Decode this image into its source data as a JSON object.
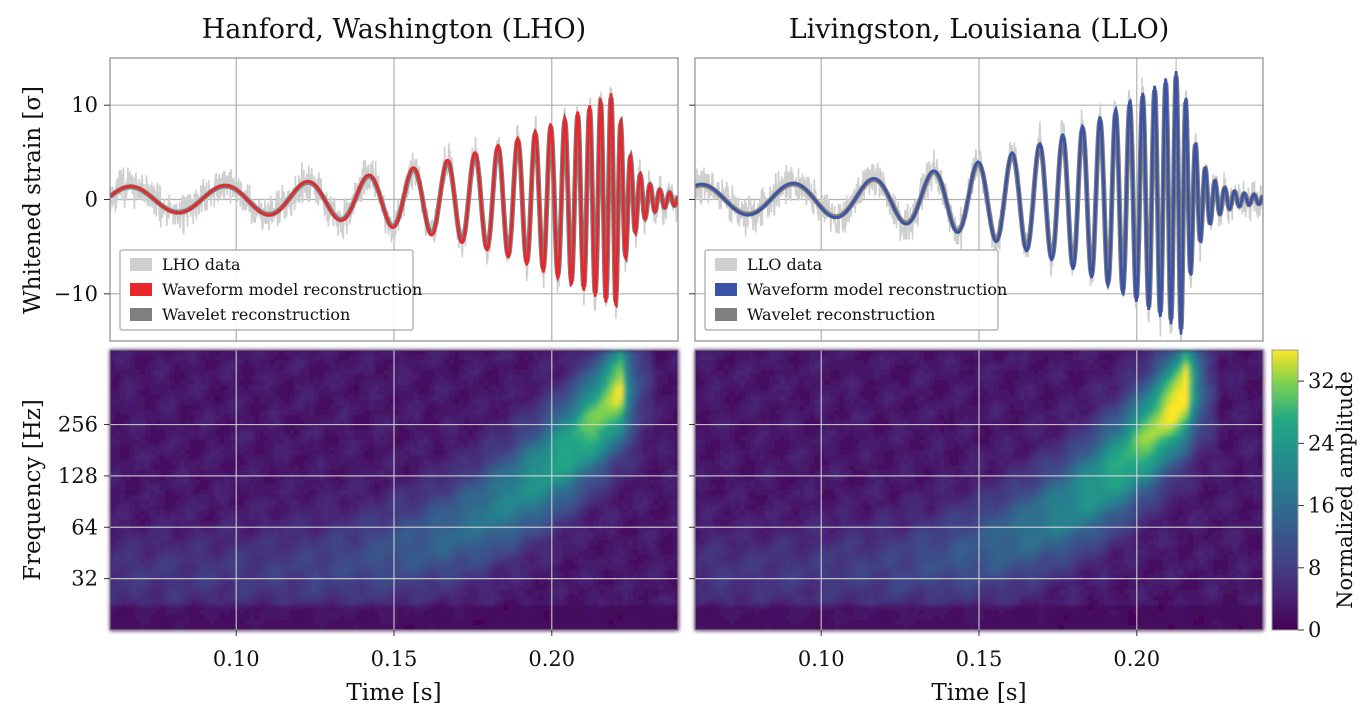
{
  "chart_data": [
    {
      "type": "line",
      "panel": "lho-strain",
      "title": "Hanford, Washington (LHO)",
      "ylabel": "Whitened strain [σ]",
      "xlim": [
        0.06,
        0.24
      ],
      "ylim": [
        -15,
        15
      ],
      "yticks": [
        -10,
        0,
        10
      ],
      "ytick_labels": [
        "−10",
        "0",
        "10"
      ],
      "grid": true,
      "legend_position": "lower-left",
      "legend": [
        {
          "label": "LHO data",
          "color": "#cfcfcf"
        },
        {
          "label": "Waveform model reconstruction",
          "color": "#e8262b"
        },
        {
          "label": "Wavelet reconstruction",
          "color": "#7f7f7f"
        }
      ],
      "series": [
        {
          "name": "LHO data",
          "color": "#cfcfcf"
        },
        {
          "name": "Waveform model reconstruction",
          "color": "#e8262b"
        },
        {
          "name": "Wavelet reconstruction",
          "color": "#7f7f7f"
        }
      ],
      "model": {
        "t_peak": 0.22,
        "a_env": 1.4,
        "env_k": 2.4,
        "amp_max": 11.5,
        "freq_base": 33,
        "freq_rise": 290,
        "freq_k": 2.4,
        "phase": 0.2,
        "ringdown_decay": 0.005
      }
    },
    {
      "type": "line",
      "panel": "llo-strain",
      "title": "Livingston, Louisiana (LLO)",
      "xlim": [
        0.06,
        0.24
      ],
      "ylim": [
        -15,
        15
      ],
      "yticks": [
        -10,
        0,
        10
      ],
      "grid": true,
      "legend_position": "lower-left",
      "legend": [
        {
          "label": "LLO data",
          "color": "#cfcfcf"
        },
        {
          "label": "Waveform model reconstruction",
          "color": "#3a53a4"
        },
        {
          "label": "Wavelet reconstruction",
          "color": "#7f7f7f"
        }
      ],
      "series": [
        {
          "name": "LLO data",
          "color": "#cfcfcf"
        },
        {
          "name": "Waveform model reconstruction",
          "color": "#3a53a4"
        },
        {
          "name": "Wavelet reconstruction",
          "color": "#7f7f7f"
        }
      ],
      "model": {
        "t_peak": 0.214,
        "a_env": 1.6,
        "env_k": 2.3,
        "amp_max": 14.0,
        "freq_base": 34,
        "freq_rise": 290,
        "freq_k": 2.4,
        "phase": 1.1,
        "ringdown_decay": 0.005
      }
    },
    {
      "type": "heatmap",
      "panel": "lho-spectrogram",
      "xlabel": "Time [s]",
      "ylabel": "Frequency [Hz]",
      "xlim": [
        0.06,
        0.24
      ],
      "xticks": [
        0.1,
        0.15,
        0.2
      ],
      "xtick_labels": [
        "0.10",
        "0.15",
        "0.20"
      ],
      "y_scale": "log2",
      "ylim": [
        16,
        700
      ],
      "yticks": [
        32,
        64,
        128,
        256
      ],
      "ytick_labels": [
        "32",
        "64",
        "128",
        "256"
      ],
      "grid": true,
      "track": {
        "t_start": 0.06,
        "t_peak": 0.222,
        "f_low": 34,
        "f_high": 420,
        "k": 2.4,
        "peak_amplitude": 32
      }
    },
    {
      "type": "heatmap",
      "panel": "llo-spectrogram",
      "xlabel": "Time [s]",
      "xlim": [
        0.06,
        0.24
      ],
      "xticks": [
        0.1,
        0.15,
        0.2
      ],
      "xtick_labels": [
        "0.10",
        "0.15",
        "0.20"
      ],
      "y_scale": "log2",
      "ylim": [
        16,
        700
      ],
      "yticks": [
        32,
        64,
        128,
        256
      ],
      "grid": true,
      "track": {
        "t_start": 0.06,
        "t_peak": 0.216,
        "f_low": 34,
        "f_high": 420,
        "k": 2.4,
        "peak_amplitude": 36
      }
    }
  ],
  "colorbar": {
    "label": "Normalized amplitude",
    "range": [
      0,
      36
    ],
    "ticks": [
      0,
      8,
      16,
      24,
      32
    ],
    "tick_labels": [
      "0",
      "8",
      "16",
      "24",
      "32"
    ],
    "colormap": "viridis"
  }
}
